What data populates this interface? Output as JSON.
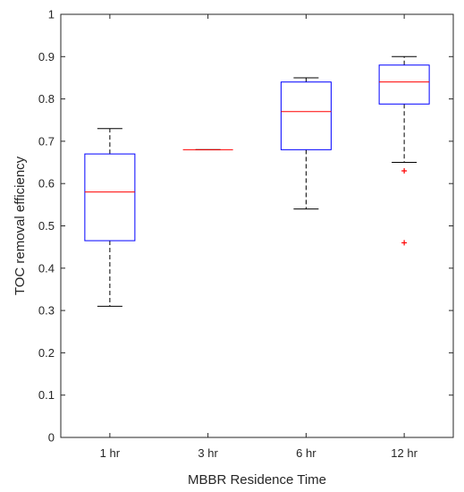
{
  "chart_data": {
    "type": "box",
    "xlabel": "MBBR Residence Time",
    "ylabel": "TOC removal efficiency",
    "ylim": [
      0,
      1
    ],
    "yticks": [
      "0",
      "0.1",
      "0.2",
      "0.3",
      "0.4",
      "0.5",
      "0.6",
      "0.7",
      "0.8",
      "0.9",
      "1"
    ],
    "categories": [
      "1 hr",
      "3 hr",
      "6 hr",
      "12 hr"
    ],
    "boxes": [
      {
        "category": "1 hr",
        "whisker_low": 0.31,
        "q1": 0.465,
        "median": 0.58,
        "q3": 0.67,
        "whisker_high": 0.73,
        "outliers": []
      },
      {
        "category": "3 hr",
        "whisker_low": 0.68,
        "q1": 0.68,
        "median": 0.68,
        "q3": 0.68,
        "whisker_high": 0.68,
        "outliers": []
      },
      {
        "category": "6 hr",
        "whisker_low": 0.54,
        "q1": 0.68,
        "median": 0.77,
        "q3": 0.84,
        "whisker_high": 0.85,
        "outliers": []
      },
      {
        "category": "12 hr",
        "whisker_low": 0.65,
        "q1": 0.788,
        "median": 0.84,
        "q3": 0.88,
        "whisker_high": 0.9,
        "outliers": [
          0.63,
          0.46
        ]
      }
    ],
    "grid": false,
    "colors": {
      "box": "#0000ff",
      "median": "#ff0000",
      "whisker": "#000000",
      "outlier": "#ff0000",
      "axis": "#262626"
    }
  }
}
